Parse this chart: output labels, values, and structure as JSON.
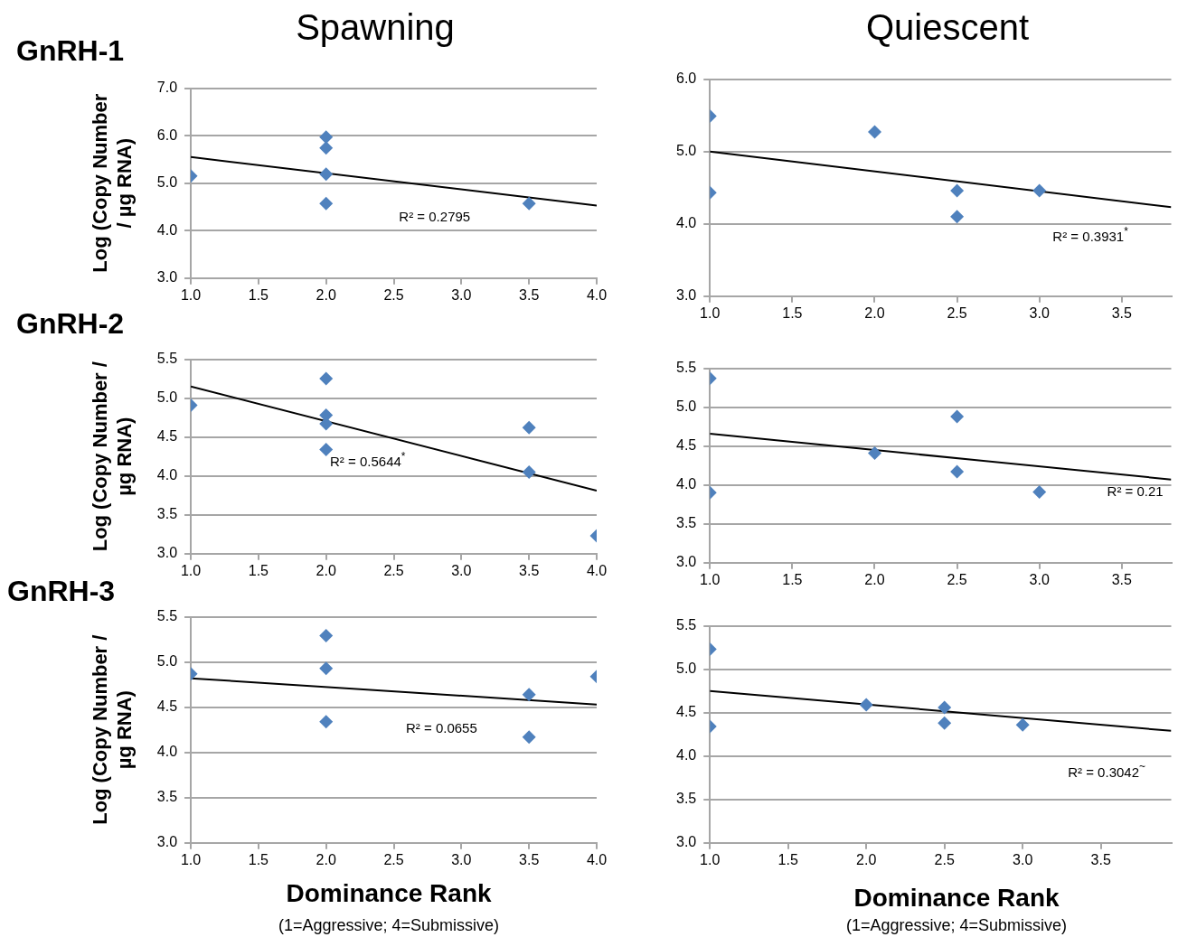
{
  "chart_data": [
    {
      "type": "scatter",
      "title": "Spawning",
      "subtitle": "GnRH-1",
      "ylabel": "Log (Copy Number / µg RNA)",
      "grid": "y",
      "xlim": [
        1,
        4
      ],
      "xticks": [
        {
          "value": 1,
          "label": "1.0"
        },
        {
          "value": 1.5,
          "label": "1.5"
        },
        {
          "value": 2,
          "label": "2.0"
        },
        {
          "value": 2.5,
          "label": "2.5"
        },
        {
          "value": 3,
          "label": "3.0"
        },
        {
          "value": 3.5,
          "label": "3.5"
        },
        {
          "value": 4,
          "label": "4.0"
        }
      ],
      "ylim": [
        3,
        7
      ],
      "yticks": [
        {
          "value": 3,
          "label": "3.0"
        },
        {
          "value": 4,
          "label": "4.0"
        },
        {
          "value": 5,
          "label": "5.0"
        },
        {
          "value": 6,
          "label": "6.0"
        },
        {
          "value": 7,
          "label": "7.0"
        }
      ],
      "annotations": [
        "R² = 0.2795"
      ],
      "series": [
        {
          "type": "scatter",
          "marker": "diamond",
          "color": "#4f81bd",
          "x": [
            1,
            2,
            2,
            2,
            2,
            3.5
          ],
          "values": [
            5.15,
            5.97,
            5.74,
            5.19,
            4.57,
            4.57
          ]
        },
        {
          "type": "line",
          "marker": "none",
          "color": "#000000",
          "x": [
            1,
            4
          ],
          "values": [
            5.55,
            4.53
          ]
        }
      ]
    },
    {
      "type": "scatter",
      "title": "Quiescent",
      "grid": "y",
      "xlim": [
        1,
        3.8
      ],
      "xticks": [
        {
          "value": 1,
          "label": "1.0"
        },
        {
          "value": 1.5,
          "label": "1.5"
        },
        {
          "value": 2,
          "label": "2.0"
        },
        {
          "value": 2.5,
          "label": "2.5"
        },
        {
          "value": 3,
          "label": "3.0"
        },
        {
          "value": 3.5,
          "label": "3.5"
        }
      ],
      "ylim": [
        3,
        6
      ],
      "yticks": [
        {
          "value": 3,
          "label": "3.0"
        },
        {
          "value": 4,
          "label": "4.0"
        },
        {
          "value": 5,
          "label": "5.0"
        },
        {
          "value": 6,
          "label": "6.0"
        }
      ],
      "annotations": [
        "R² = 0.3931$^{*}$"
      ],
      "series": [
        {
          "type": "scatter",
          "marker": "diamond",
          "color": "#4f81bd",
          "x": [
            1,
            1,
            2,
            2.5,
            2.5,
            3
          ],
          "values": [
            5.49,
            4.43,
            5.27,
            4.46,
            4.1,
            4.46
          ]
        },
        {
          "type": "line",
          "marker": "none",
          "color": "#000000",
          "x": [
            1,
            3.8
          ],
          "values": [
            5.0,
            4.23
          ]
        }
      ]
    },
    {
      "type": "scatter",
      "subtitle": "GnRH-2",
      "ylabel": "Log (Copy Number / µg RNA)",
      "grid": "y",
      "xlim": [
        1,
        4
      ],
      "xticks": [
        {
          "value": 1,
          "label": "1.0"
        },
        {
          "value": 1.5,
          "label": "1.5"
        },
        {
          "value": 2,
          "label": "2.0"
        },
        {
          "value": 2.5,
          "label": "2.5"
        },
        {
          "value": 3,
          "label": "3.0"
        },
        {
          "value": 3.5,
          "label": "3.5"
        },
        {
          "value": 4,
          "label": "4.0"
        }
      ],
      "ylim": [
        3,
        5.5
      ],
      "yticks": [
        {
          "value": 3,
          "label": "3.0"
        },
        {
          "value": 3.5,
          "label": "3.5"
        },
        {
          "value": 4,
          "label": "4.0"
        },
        {
          "value": 4.5,
          "label": "4.5"
        },
        {
          "value": 5,
          "label": "5.0"
        },
        {
          "value": 5.5,
          "label": "5.5"
        }
      ],
      "annotations": [
        "R² = 0.5644$^{*}$"
      ],
      "series": [
        {
          "type": "scatter",
          "marker": "diamond",
          "color": "#4f81bd",
          "x": [
            1,
            2,
            2,
            2,
            2,
            3.5,
            3.5,
            4
          ],
          "values": [
            4.91,
            5.25,
            4.78,
            4.67,
            4.34,
            4.62,
            4.05,
            3.23
          ]
        },
        {
          "type": "line",
          "marker": "none",
          "color": "#000000",
          "x": [
            1,
            4
          ],
          "values": [
            5.15,
            3.81
          ]
        }
      ]
    },
    {
      "type": "scatter",
      "grid": "y",
      "xlim": [
        1,
        3.8
      ],
      "xticks": [
        {
          "value": 1,
          "label": "1.0"
        },
        {
          "value": 1.5,
          "label": "1.5"
        },
        {
          "value": 2,
          "label": "2.0"
        },
        {
          "value": 2.5,
          "label": "2.5"
        },
        {
          "value": 3,
          "label": "3.0"
        },
        {
          "value": 3.5,
          "label": "3.5"
        }
      ],
      "ylim": [
        3,
        5.5
      ],
      "yticks": [
        {
          "value": 3,
          "label": "3.0"
        },
        {
          "value": 3.5,
          "label": "3.5"
        },
        {
          "value": 4,
          "label": "4.0"
        },
        {
          "value": 4.5,
          "label": "4.5"
        },
        {
          "value": 5,
          "label": "5.0"
        },
        {
          "value": 5.5,
          "label": "5.5"
        }
      ],
      "annotations": [
        "R² = 0.21"
      ],
      "series": [
        {
          "type": "scatter",
          "marker": "diamond",
          "color": "#4f81bd",
          "x": [
            1,
            1,
            2,
            2.5,
            2.5,
            3
          ],
          "values": [
            5.37,
            3.9,
            4.41,
            4.88,
            4.17,
            3.91
          ]
        },
        {
          "type": "line",
          "marker": "none",
          "color": "#000000",
          "x": [
            1,
            3.8
          ],
          "values": [
            4.66,
            4.07
          ]
        }
      ]
    },
    {
      "type": "scatter",
      "subtitle": "GnRH-3",
      "ylabel": "Log (Copy Number / µg RNA)",
      "xlabel": "Dominance Rank",
      "grid": "y",
      "xlim": [
        1,
        4
      ],
      "xticks": [
        {
          "value": 1,
          "label": "1.0"
        },
        {
          "value": 1.5,
          "label": "1.5"
        },
        {
          "value": 2,
          "label": "2.0"
        },
        {
          "value": 2.5,
          "label": "2.5"
        },
        {
          "value": 3,
          "label": "3.0"
        },
        {
          "value": 3.5,
          "label": "3.5"
        },
        {
          "value": 4,
          "label": "4.0"
        }
      ],
      "ylim": [
        3,
        5.5
      ],
      "yticks": [
        {
          "value": 3,
          "label": "3.0"
        },
        {
          "value": 3.5,
          "label": "3.5"
        },
        {
          "value": 4,
          "label": "4.0"
        },
        {
          "value": 4.5,
          "label": "4.5"
        },
        {
          "value": 5,
          "label": "5.0"
        },
        {
          "value": 5.5,
          "label": "5.5"
        }
      ],
      "annotations": [
        "R² = 0.0655",
        "(1=Aggressive; 4=Submissive)"
      ],
      "series": [
        {
          "type": "scatter",
          "marker": "diamond",
          "color": "#4f81bd",
          "x": [
            1,
            2,
            2,
            2,
            3.5,
            3.5,
            4
          ],
          "values": [
            4.87,
            5.29,
            4.93,
            4.34,
            4.64,
            4.17,
            4.84
          ]
        },
        {
          "type": "line",
          "marker": "none",
          "color": "#000000",
          "x": [
            1,
            4
          ],
          "values": [
            4.82,
            4.53
          ]
        }
      ]
    },
    {
      "type": "scatter",
      "xlabel": "Dominance Rank",
      "grid": "y",
      "xlim": [
        1,
        3.95
      ],
      "xticks": [
        {
          "value": 1,
          "label": "1.0"
        },
        {
          "value": 1.5,
          "label": "1.5"
        },
        {
          "value": 2,
          "label": "2.0"
        },
        {
          "value": 2.5,
          "label": "2.5"
        },
        {
          "value": 3,
          "label": "3.0"
        },
        {
          "value": 3.5,
          "label": "3.5"
        }
      ],
      "ylim": [
        3,
        5.5
      ],
      "yticks": [
        {
          "value": 3,
          "label": "3.0"
        },
        {
          "value": 3.5,
          "label": "3.5"
        },
        {
          "value": 4,
          "label": "4.0"
        },
        {
          "value": 4.5,
          "label": "4.5"
        },
        {
          "value": 5,
          "label": "5.0"
        },
        {
          "value": 5.5,
          "label": "5.5"
        }
      ],
      "annotations": [
        "R² = 0.3042$^{~}$",
        "(1=Aggressive; 4=Submissive)"
      ],
      "series": [
        {
          "type": "scatter",
          "marker": "diamond",
          "color": "#4f81bd",
          "x": [
            1,
            1,
            2,
            2.5,
            2.5,
            3
          ],
          "values": [
            5.23,
            4.34,
            4.59,
            4.56,
            4.38,
            4.36
          ]
        },
        {
          "type": "line",
          "marker": "none",
          "color": "#000000",
          "x": [
            1,
            3.95
          ],
          "values": [
            4.75,
            4.29
          ]
        }
      ]
    }
  ]
}
